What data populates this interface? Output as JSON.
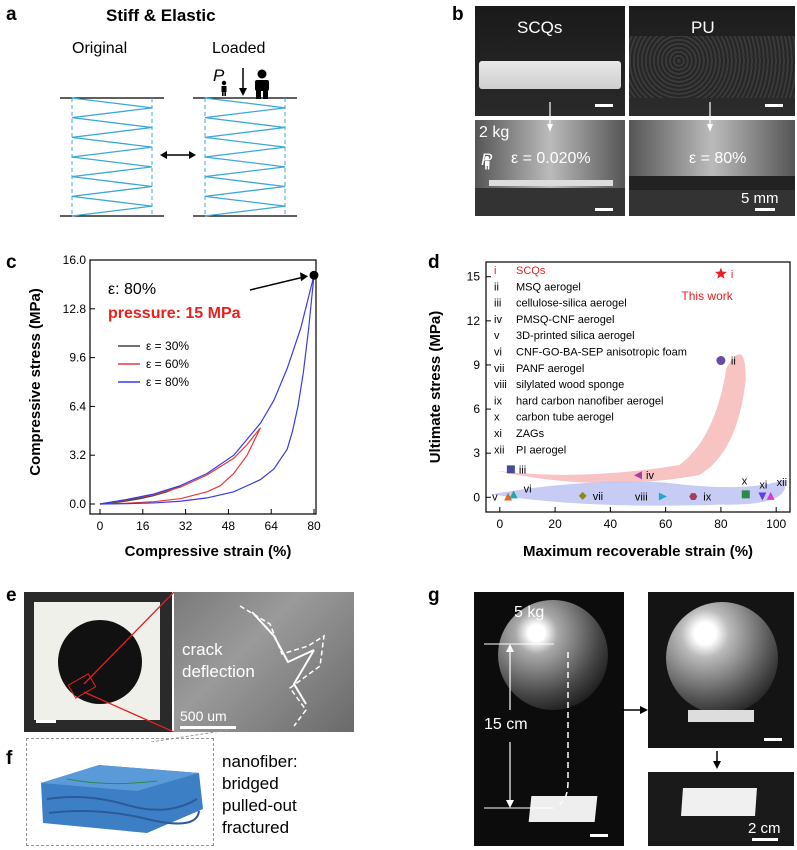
{
  "panel_labels": {
    "a": "a",
    "b": "b",
    "c": "c",
    "d": "d",
    "e": "e",
    "f": "f",
    "g": "g"
  },
  "panel_a": {
    "title": "Stiff & Elastic",
    "original": "Original",
    "loaded": "Loaded",
    "p_symbol": "P",
    "colors": {
      "spring": "#3aa8d8"
    }
  },
  "panel_b": {
    "scqs": "SCQs",
    "pu": "PU",
    "load": "2 kg",
    "p_symbol": "P",
    "strain_scqs": "ε = 0.020%",
    "strain_pu": "ε = 80%",
    "scale": "5 mm"
  },
  "panel_c": {
    "annot_strain": "ε: 80%",
    "annot_pressure": "pressure: 15 MPa",
    "chart_data": {
      "type": "line",
      "xlabel": "Compressive strain (%)",
      "ylabel": "Compressive stress (MPa)",
      "xlim": [
        0,
        80
      ],
      "ylim": [
        0,
        16
      ],
      "xticks": [
        "0",
        "16",
        "32",
        "48",
        "64",
        "80"
      ],
      "yticks": [
        "0.0",
        "3.2",
        "6.4",
        "9.6",
        "12.8",
        "16.0"
      ],
      "series": [
        {
          "name": "ε = 30%",
          "color": "#444444",
          "x": [
            0,
            5,
            10,
            15,
            20,
            25,
            30,
            25,
            20,
            15,
            10,
            5,
            0
          ],
          "y": [
            0,
            0.12,
            0.25,
            0.4,
            0.6,
            0.85,
            1.15,
            0.8,
            0.55,
            0.35,
            0.2,
            0.08,
            0
          ]
        },
        {
          "name": "ε = 60%",
          "color": "#e83a3a",
          "x": [
            0,
            10,
            20,
            30,
            40,
            50,
            55,
            60,
            55,
            50,
            45,
            40,
            30,
            20,
            10,
            0
          ],
          "y": [
            0,
            0.28,
            0.6,
            1.1,
            1.9,
            3.0,
            3.9,
            5.0,
            3.2,
            2.0,
            1.2,
            0.8,
            0.35,
            0.15,
            0.05,
            0
          ]
        },
        {
          "name": "ε = 80%",
          "color": "#3a3ae8",
          "x": [
            0,
            10,
            20,
            30,
            40,
            50,
            60,
            65,
            70,
            75,
            78,
            80,
            78,
            76,
            74,
            72,
            70,
            65,
            60,
            50,
            40,
            30,
            20,
            10,
            0
          ],
          "y": [
            0,
            0.3,
            0.65,
            1.2,
            2.0,
            3.2,
            5.3,
            6.8,
            8.9,
            11.5,
            13.6,
            15.0,
            11.5,
            8.6,
            6.4,
            4.8,
            3.6,
            2.3,
            1.6,
            0.8,
            0.4,
            0.18,
            0.07,
            0.02,
            0
          ]
        }
      ]
    }
  },
  "panel_d": {
    "this_work_num": "i",
    "this_work": "This work",
    "legend": [
      {
        "num": "i",
        "text": "SCQs"
      },
      {
        "num": "ii",
        "text": "MSQ aerogel"
      },
      {
        "num": "iii",
        "text": "cellulose-silica aerogel"
      },
      {
        "num": "iv",
        "text": "PMSQ-CNF aerogel"
      },
      {
        "num": "v",
        "text": "3D-printed silica aerogel"
      },
      {
        "num": "vi",
        "text": "CNF-GO-BA-SEP anisotropic foam"
      },
      {
        "num": "vii",
        "text": "PANF aerogel"
      },
      {
        "num": "viii",
        "text": "silylated wood sponge"
      },
      {
        "num": "ix",
        "text": "hard carbon nanofiber aerogel"
      },
      {
        "num": "x",
        "text": "carbon tube aerogel"
      },
      {
        "num": "xi",
        "text": "ZAGs"
      },
      {
        "num": "xii",
        "text": "PI aerogel"
      }
    ],
    "chart_data": {
      "type": "scatter",
      "xlabel": "Maximum recoverable strain (%)",
      "ylabel": "Ultimate stress (MPa)",
      "xlim": [
        -5,
        105
      ],
      "ylim": [
        -1,
        16
      ],
      "xticks": [
        "0",
        "20",
        "40",
        "60",
        "80",
        "100"
      ],
      "yticks": [
        "0",
        "3",
        "6",
        "9",
        "12",
        "15"
      ],
      "points": [
        {
          "label": "i",
          "x": 80,
          "y": 15.2,
          "color": "#e82020",
          "marker": "star"
        },
        {
          "label": "ii",
          "x": 80,
          "y": 9.3,
          "color": "#6a4aa8",
          "marker": "halfcircle"
        },
        {
          "label": "iii",
          "x": 4,
          "y": 1.9,
          "color": "#4a4a9a",
          "marker": "halfsquare"
        },
        {
          "label": "iv",
          "x": 50,
          "y": 1.5,
          "color": "#b23aa8",
          "marker": "tri-left"
        },
        {
          "label": "v",
          "x": 3,
          "y": 0.05,
          "color": "#e86a20",
          "marker": "tri-up"
        },
        {
          "label": "vi",
          "x": 5,
          "y": 0.2,
          "color": "#20a8a8",
          "marker": "tri-up"
        },
        {
          "label": "vii",
          "x": 30,
          "y": 0.1,
          "color": "#8a8a20",
          "marker": "diamond"
        },
        {
          "label": "viii",
          "x": 59,
          "y": 0.05,
          "color": "#20a8c8",
          "marker": "tri-right"
        },
        {
          "label": "ix",
          "x": 70,
          "y": 0.05,
          "color": "#a83a5a",
          "marker": "hexagon"
        },
        {
          "label": "x",
          "x": 89,
          "y": 0.2,
          "color": "#2a8a4a",
          "marker": "halfsquare"
        },
        {
          "label": "xi",
          "x": 95,
          "y": 0.05,
          "color": "#6a3ae8",
          "marker": "tri-down"
        },
        {
          "label": "xii",
          "x": 98,
          "y": 0.1,
          "color": "#d83ad8",
          "marker": "tri-up"
        }
      ]
    }
  },
  "panel_e": {
    "crack": "crack",
    "deflection": "deflection",
    "scale": "500 um"
  },
  "panel_f": {
    "caption": [
      "nanofiber:",
      "bridged",
      "pulled-out",
      "fractured"
    ]
  },
  "panel_g": {
    "mass": "5 kg",
    "height": "15 cm",
    "scale": "2 cm"
  }
}
